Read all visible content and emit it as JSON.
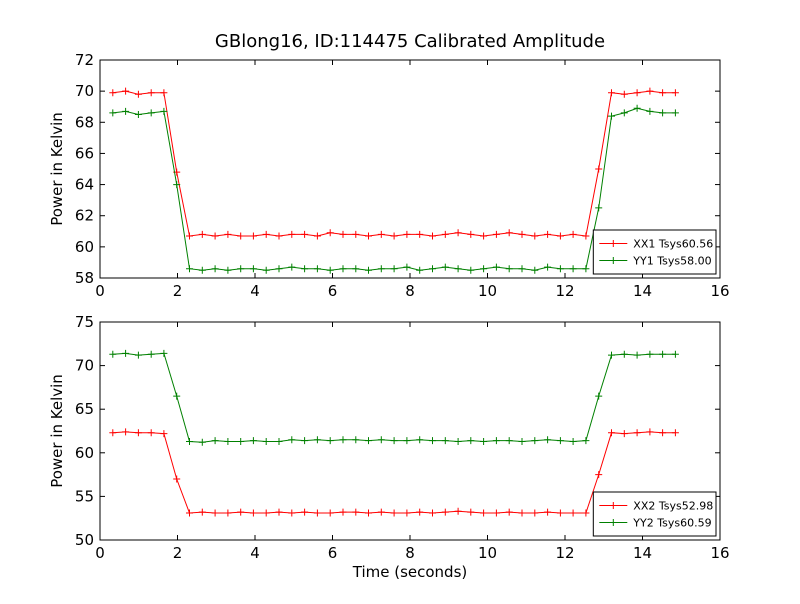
{
  "figure": {
    "title": "GBlong16, ID:114475 Calibrated Amplitude",
    "background": "#ffffff",
    "axis_color": "#000000"
  },
  "chart_data": [
    {
      "type": "line",
      "title": "GBlong16, ID:114475 Calibrated Amplitude",
      "xlabel": "",
      "ylabel": "Power in Kelvin",
      "xlim": [
        0,
        16
      ],
      "ylim": [
        58,
        72
      ],
      "xticks": [
        0,
        2,
        4,
        6,
        8,
        10,
        12,
        14,
        16
      ],
      "yticks": [
        58,
        60,
        62,
        64,
        66,
        68,
        70,
        72
      ],
      "grid": false,
      "legend_position": "lower right",
      "x": [
        0.33,
        0.66,
        0.99,
        1.32,
        1.65,
        1.98,
        2.31,
        2.64,
        2.97,
        3.3,
        3.63,
        3.96,
        4.29,
        4.62,
        4.95,
        5.28,
        5.61,
        5.94,
        6.27,
        6.6,
        6.93,
        7.26,
        7.59,
        7.92,
        8.25,
        8.58,
        8.91,
        9.24,
        9.57,
        9.9,
        10.23,
        10.56,
        10.89,
        11.22,
        11.55,
        11.88,
        12.21,
        12.54,
        12.87,
        13.2,
        13.53,
        13.86,
        14.19,
        14.52,
        14.85
      ],
      "series": [
        {
          "name": "XX1 Tsys60.56",
          "color": "#ff0000",
          "marker": "plus",
          "values": [
            69.9,
            70.0,
            69.8,
            69.9,
            69.9,
            64.8,
            60.7,
            60.8,
            60.7,
            60.8,
            60.7,
            60.7,
            60.8,
            60.7,
            60.8,
            60.8,
            60.7,
            60.9,
            60.8,
            60.8,
            60.7,
            60.8,
            60.7,
            60.8,
            60.8,
            60.7,
            60.8,
            60.9,
            60.8,
            60.7,
            60.8,
            60.9,
            60.8,
            60.7,
            60.8,
            60.7,
            60.8,
            60.7,
            65.0,
            69.9,
            69.8,
            69.9,
            70.0,
            69.9,
            69.9
          ]
        },
        {
          "name": "YY1 Tsys58.00",
          "color": "#008000",
          "marker": "plus",
          "values": [
            68.6,
            68.7,
            68.5,
            68.6,
            68.7,
            64.0,
            58.6,
            58.5,
            58.6,
            58.5,
            58.6,
            58.6,
            58.5,
            58.6,
            58.7,
            58.6,
            58.6,
            58.5,
            58.6,
            58.6,
            58.5,
            58.6,
            58.6,
            58.7,
            58.5,
            58.6,
            58.7,
            58.6,
            58.5,
            58.6,
            58.7,
            58.6,
            58.6,
            58.5,
            58.7,
            58.6,
            58.6,
            58.6,
            62.5,
            68.4,
            68.6,
            68.9,
            68.7,
            68.6,
            68.6
          ]
        }
      ]
    },
    {
      "type": "line",
      "title": "",
      "xlabel": "Time (seconds)",
      "ylabel": "Power in Kelvin",
      "xlim": [
        0,
        16
      ],
      "ylim": [
        50,
        75
      ],
      "xticks": [
        0,
        2,
        4,
        6,
        8,
        10,
        12,
        14,
        16
      ],
      "yticks": [
        50,
        55,
        60,
        65,
        70,
        75
      ],
      "grid": false,
      "legend_position": "lower right",
      "x": [
        0.33,
        0.66,
        0.99,
        1.32,
        1.65,
        1.98,
        2.31,
        2.64,
        2.97,
        3.3,
        3.63,
        3.96,
        4.29,
        4.62,
        4.95,
        5.28,
        5.61,
        5.94,
        6.27,
        6.6,
        6.93,
        7.26,
        7.59,
        7.92,
        8.25,
        8.58,
        8.91,
        9.24,
        9.57,
        9.9,
        10.23,
        10.56,
        10.89,
        11.22,
        11.55,
        11.88,
        12.21,
        12.54,
        12.87,
        13.2,
        13.53,
        13.86,
        14.19,
        14.52,
        14.85
      ],
      "series": [
        {
          "name": "XX2 Tsys52.98",
          "color": "#ff0000",
          "marker": "plus",
          "values": [
            62.3,
            62.4,
            62.3,
            62.3,
            62.2,
            57.0,
            53.1,
            53.2,
            53.1,
            53.1,
            53.2,
            53.1,
            53.1,
            53.2,
            53.1,
            53.2,
            53.1,
            53.1,
            53.2,
            53.2,
            53.1,
            53.2,
            53.1,
            53.1,
            53.2,
            53.1,
            53.2,
            53.3,
            53.2,
            53.1,
            53.1,
            53.2,
            53.1,
            53.1,
            53.2,
            53.1,
            53.1,
            53.1,
            57.5,
            62.3,
            62.2,
            62.3,
            62.4,
            62.3,
            62.3
          ]
        },
        {
          "name": "YY2 Tsys60.59",
          "color": "#008000",
          "marker": "plus",
          "values": [
            71.3,
            71.4,
            71.2,
            71.3,
            71.4,
            66.5,
            61.3,
            61.2,
            61.4,
            61.3,
            61.3,
            61.4,
            61.3,
            61.3,
            61.5,
            61.4,
            61.5,
            61.4,
            61.5,
            61.5,
            61.4,
            61.5,
            61.4,
            61.4,
            61.5,
            61.4,
            61.4,
            61.3,
            61.4,
            61.3,
            61.4,
            61.4,
            61.3,
            61.4,
            61.5,
            61.4,
            61.3,
            61.4,
            66.5,
            71.2,
            71.3,
            71.2,
            71.3,
            71.3,
            71.3
          ]
        }
      ]
    }
  ]
}
